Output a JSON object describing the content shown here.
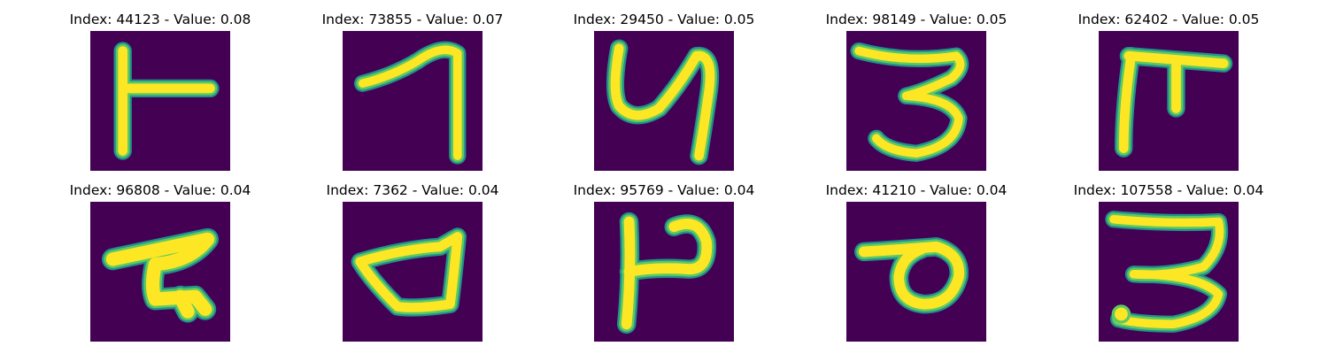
{
  "colors": {
    "background": "#440154",
    "stroke_outer": "#21918c",
    "stroke_mid": "#5ec962",
    "stroke_inner": "#fde725"
  },
  "panels": [
    {
      "index": "44123",
      "value": "0.08",
      "glyph": "glyph-t-shape-icon"
    },
    {
      "index": "73855",
      "value": "0.07",
      "glyph": "glyph-seven-shape-icon"
    },
    {
      "index": "29450",
      "value": "0.05",
      "glyph": "glyph-y-shape-icon"
    },
    {
      "index": "98149",
      "value": "0.05",
      "glyph": "glyph-three-shape-icon"
    },
    {
      "index": "62402",
      "value": "0.05",
      "glyph": "glyph-pi-shape-icon"
    },
    {
      "index": "96808",
      "value": "0.04",
      "glyph": "glyph-squiggle-shape-icon"
    },
    {
      "index": "7362",
      "value": "0.04",
      "glyph": "glyph-d-loop-shape-icon"
    },
    {
      "index": "95769",
      "value": "0.04",
      "glyph": "glyph-h-hook-shape-icon"
    },
    {
      "index": "41210",
      "value": "0.04",
      "glyph": "glyph-loop-o-shape-icon"
    },
    {
      "index": "107558",
      "value": "0.04",
      "glyph": "glyph-three-wide-shape-icon"
    }
  ]
}
